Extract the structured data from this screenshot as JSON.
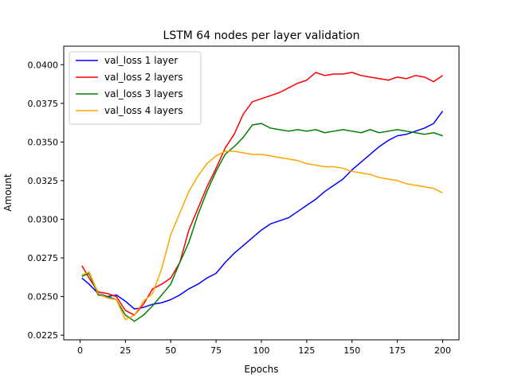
{
  "chart_data": {
    "type": "line",
    "title": "LSTM 64 nodes per layer validation",
    "xlabel": "Epochs",
    "ylabel": "Amount",
    "xlim": [
      -9,
      209
    ],
    "ylim": [
      0.0222,
      0.0412
    ],
    "xticks": [
      0,
      25,
      50,
      75,
      100,
      125,
      150,
      175,
      200
    ],
    "yticks": [
      0.0225,
      0.025,
      0.0275,
      0.03,
      0.0325,
      0.035,
      0.0375,
      0.04
    ],
    "ytick_labels": [
      "0.0225",
      "0.0250",
      "0.0275",
      "0.0300",
      "0.0325",
      "0.0350",
      "0.0375",
      "0.0400"
    ],
    "grid": false,
    "legend_position": "top-left",
    "series": [
      {
        "name": "val_loss 1 layer",
        "color": "#0000ff",
        "points": [
          [
            1,
            0.0262
          ],
          [
            5,
            0.0258
          ],
          [
            10,
            0.0252
          ],
          [
            15,
            0.025
          ],
          [
            20,
            0.0251
          ],
          [
            25,
            0.0247
          ],
          [
            30,
            0.0242
          ],
          [
            35,
            0.0243
          ],
          [
            40,
            0.0245
          ],
          [
            45,
            0.0246
          ],
          [
            50,
            0.0248
          ],
          [
            55,
            0.0251
          ],
          [
            60,
            0.0255
          ],
          [
            65,
            0.0258
          ],
          [
            70,
            0.0262
          ],
          [
            75,
            0.0265
          ],
          [
            80,
            0.0272
          ],
          [
            85,
            0.0278
          ],
          [
            90,
            0.0283
          ],
          [
            95,
            0.0288
          ],
          [
            100,
            0.0293
          ],
          [
            105,
            0.0297
          ],
          [
            110,
            0.0299
          ],
          [
            115,
            0.0301
          ],
          [
            120,
            0.0305
          ],
          [
            125,
            0.0309
          ],
          [
            130,
            0.0313
          ],
          [
            135,
            0.0318
          ],
          [
            140,
            0.0322
          ],
          [
            145,
            0.0326
          ],
          [
            150,
            0.0332
          ],
          [
            155,
            0.0337
          ],
          [
            160,
            0.0342
          ],
          [
            165,
            0.0347
          ],
          [
            170,
            0.0351
          ],
          [
            175,
            0.0354
          ],
          [
            180,
            0.0355
          ],
          [
            185,
            0.0357
          ],
          [
            190,
            0.0359
          ],
          [
            195,
            0.0362
          ],
          [
            200,
            0.037
          ]
        ]
      },
      {
        "name": "val_loss 2 layers",
        "color": "#ff0000",
        "points": [
          [
            1,
            0.027
          ],
          [
            5,
            0.0262
          ],
          [
            10,
            0.0253
          ],
          [
            15,
            0.0252
          ],
          [
            20,
            0.025
          ],
          [
            25,
            0.0241
          ],
          [
            30,
            0.0238
          ],
          [
            35,
            0.0245
          ],
          [
            40,
            0.0255
          ],
          [
            45,
            0.0258
          ],
          [
            50,
            0.0262
          ],
          [
            55,
            0.0272
          ],
          [
            60,
            0.0293
          ],
          [
            65,
            0.0307
          ],
          [
            70,
            0.0321
          ],
          [
            75,
            0.0333
          ],
          [
            80,
            0.0346
          ],
          [
            85,
            0.0355
          ],
          [
            90,
            0.0368
          ],
          [
            95,
            0.0376
          ],
          [
            100,
            0.0378
          ],
          [
            105,
            0.038
          ],
          [
            110,
            0.0382
          ],
          [
            115,
            0.0385
          ],
          [
            120,
            0.0388
          ],
          [
            125,
            0.039
          ],
          [
            130,
            0.0395
          ],
          [
            135,
            0.0393
          ],
          [
            140,
            0.0394
          ],
          [
            145,
            0.0394
          ],
          [
            150,
            0.0395
          ],
          [
            155,
            0.0393
          ],
          [
            160,
            0.0392
          ],
          [
            165,
            0.0391
          ],
          [
            170,
            0.039
          ],
          [
            175,
            0.0392
          ],
          [
            180,
            0.0391
          ],
          [
            185,
            0.0393
          ],
          [
            190,
            0.0392
          ],
          [
            195,
            0.0389
          ],
          [
            200,
            0.0393
          ]
        ]
      },
      {
        "name": "val_loss 3 layers",
        "color": "#008000",
        "points": [
          [
            1,
            0.0263
          ],
          [
            5,
            0.0265
          ],
          [
            10,
            0.0251
          ],
          [
            15,
            0.025
          ],
          [
            20,
            0.0248
          ],
          [
            25,
            0.0238
          ],
          [
            30,
            0.0234
          ],
          [
            35,
            0.0238
          ],
          [
            40,
            0.0244
          ],
          [
            45,
            0.0251
          ],
          [
            50,
            0.0258
          ],
          [
            55,
            0.0272
          ],
          [
            60,
            0.0285
          ],
          [
            65,
            0.0303
          ],
          [
            70,
            0.0318
          ],
          [
            75,
            0.0331
          ],
          [
            80,
            0.0342
          ],
          [
            85,
            0.0347
          ],
          [
            90,
            0.0353
          ],
          [
            95,
            0.0361
          ],
          [
            100,
            0.0362
          ],
          [
            105,
            0.0359
          ],
          [
            110,
            0.0358
          ],
          [
            115,
            0.0357
          ],
          [
            120,
            0.0358
          ],
          [
            125,
            0.0357
          ],
          [
            130,
            0.0358
          ],
          [
            135,
            0.0356
          ],
          [
            140,
            0.0357
          ],
          [
            145,
            0.0358
          ],
          [
            150,
            0.0357
          ],
          [
            155,
            0.0356
          ],
          [
            160,
            0.0358
          ],
          [
            165,
            0.0356
          ],
          [
            170,
            0.0357
          ],
          [
            175,
            0.0358
          ],
          [
            180,
            0.0357
          ],
          [
            185,
            0.0356
          ],
          [
            190,
            0.0355
          ],
          [
            195,
            0.0356
          ],
          [
            200,
            0.0354
          ]
        ]
      },
      {
        "name": "val_loss 4 layers",
        "color": "#ffa500",
        "points": [
          [
            1,
            0.0264
          ],
          [
            5,
            0.0266
          ],
          [
            10,
            0.0252
          ],
          [
            15,
            0.0249
          ],
          [
            20,
            0.0248
          ],
          [
            25,
            0.0235
          ],
          [
            30,
            0.0238
          ],
          [
            35,
            0.0247
          ],
          [
            40,
            0.0252
          ],
          [
            45,
            0.0268
          ],
          [
            50,
            0.029
          ],
          [
            55,
            0.0304
          ],
          [
            60,
            0.0318
          ],
          [
            65,
            0.0328
          ],
          [
            70,
            0.0336
          ],
          [
            75,
            0.0341
          ],
          [
            80,
            0.0344
          ],
          [
            85,
            0.0344
          ],
          [
            90,
            0.0343
          ],
          [
            95,
            0.0342
          ],
          [
            100,
            0.0342
          ],
          [
            105,
            0.0341
          ],
          [
            110,
            0.034
          ],
          [
            115,
            0.0339
          ],
          [
            120,
            0.0338
          ],
          [
            125,
            0.0336
          ],
          [
            130,
            0.0335
          ],
          [
            135,
            0.0334
          ],
          [
            140,
            0.0334
          ],
          [
            145,
            0.0333
          ],
          [
            150,
            0.0331
          ],
          [
            155,
            0.033
          ],
          [
            160,
            0.0329
          ],
          [
            165,
            0.0327
          ],
          [
            170,
            0.0326
          ],
          [
            175,
            0.0325
          ],
          [
            180,
            0.0323
          ],
          [
            185,
            0.0322
          ],
          [
            190,
            0.0321
          ],
          [
            195,
            0.032
          ],
          [
            200,
            0.0317
          ]
        ]
      }
    ]
  }
}
